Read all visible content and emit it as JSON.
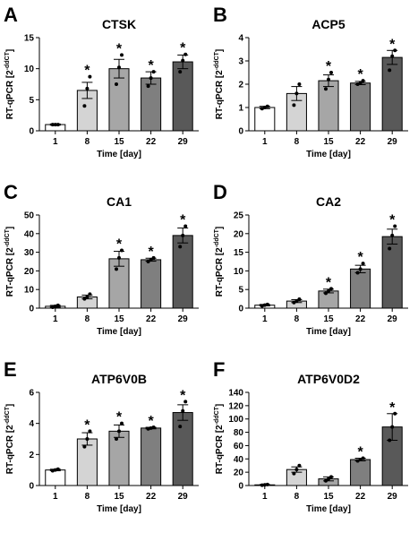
{
  "chart_data": [
    {
      "type": "bar",
      "panel": "A",
      "title": "CTSK",
      "ylabel": [
        "RT-qPCR [2",
        "-ddCT",
        "]"
      ],
      "xlabel": "Time [day]",
      "categories": [
        "1",
        "8",
        "15",
        "22",
        "29"
      ],
      "values": [
        1,
        6.5,
        10,
        8.5,
        11.1
      ],
      "errors": [
        0.1,
        1.3,
        1.5,
        1.0,
        1.1
      ],
      "points": [
        [
          1,
          1,
          1
        ],
        [
          4,
          6.8,
          8.7
        ],
        [
          7.5,
          10.2,
          12.2
        ],
        [
          7.2,
          8.5,
          9.5
        ],
        [
          9.5,
          11.3,
          12.3
        ]
      ],
      "significance": [
        null,
        "*",
        "*",
        "*",
        "*"
      ],
      "colors": [
        "#ffffff",
        "#d4d4d4",
        "#a6a6a6",
        "#7f7f7f",
        "#595959"
      ],
      "ylim": [
        0,
        15
      ],
      "yticks": [
        0,
        5,
        10,
        15
      ]
    },
    {
      "type": "bar",
      "panel": "B",
      "title": "ACP5",
      "ylabel": [
        "RT-qPCR [2",
        "-ddCT",
        "]"
      ],
      "xlabel": "Time [day]",
      "categories": [
        "1",
        "8",
        "15",
        "22",
        "29"
      ],
      "values": [
        1,
        1.6,
        2.15,
        2.05,
        3.15
      ],
      "errors": [
        0.05,
        0.3,
        0.25,
        0.07,
        0.3
      ],
      "points": [
        [
          0.95,
          1,
          1.05
        ],
        [
          1.1,
          1.6,
          2.0
        ],
        [
          1.8,
          2.2,
          2.5
        ],
        [
          2.0,
          2.05,
          2.15
        ],
        [
          2.6,
          3.2,
          3.45
        ]
      ],
      "significance": [
        null,
        null,
        "*",
        "*",
        "*"
      ],
      "colors": [
        "#ffffff",
        "#d4d4d4",
        "#a6a6a6",
        "#7f7f7f",
        "#595959"
      ],
      "ylim": [
        0,
        4
      ],
      "yticks": [
        0,
        1,
        2,
        3,
        4
      ]
    },
    {
      "type": "bar",
      "panel": "C",
      "title": "CA1",
      "ylabel": [
        "RT-qPCR [2",
        "-ddCT",
        "]"
      ],
      "xlabel": "Time [day]",
      "categories": [
        "1",
        "8",
        "15",
        "22",
        "29"
      ],
      "values": [
        1,
        6,
        26.5,
        26,
        39
      ],
      "errors": [
        0.5,
        1,
        4,
        0.8,
        4
      ],
      "points": [
        [
          0.5,
          1,
          1.5
        ],
        [
          5,
          6,
          7.5
        ],
        [
          21,
          27,
          31
        ],
        [
          25,
          26,
          27
        ],
        [
          33,
          39,
          44
        ]
      ],
      "significance": [
        null,
        null,
        "*",
        "*",
        "*"
      ],
      "colors": [
        "#ffffff",
        "#d4d4d4",
        "#a6a6a6",
        "#7f7f7f",
        "#595959"
      ],
      "ylim": [
        0,
        50
      ],
      "yticks": [
        0,
        10,
        20,
        30,
        40,
        50
      ]
    },
    {
      "type": "bar",
      "panel": "D",
      "title": "CA2",
      "ylabel": [
        "RT-qPCR [2",
        "-ddCT",
        "]"
      ],
      "xlabel": "Time [day]",
      "categories": [
        "1",
        "8",
        "15",
        "22",
        "29"
      ],
      "values": [
        0.8,
        1.9,
        4.6,
        10.5,
        19.2
      ],
      "errors": [
        0.2,
        0.4,
        0.5,
        1,
        2
      ],
      "points": [
        [
          0.6,
          0.8,
          1
        ],
        [
          1.5,
          1.9,
          2.4
        ],
        [
          4,
          4.6,
          5.2
        ],
        [
          9.5,
          10.5,
          12
        ],
        [
          16,
          19.5,
          22
        ]
      ],
      "significance": [
        null,
        null,
        "*",
        "*",
        "*"
      ],
      "colors": [
        "#ffffff",
        "#d4d4d4",
        "#a6a6a6",
        "#7f7f7f",
        "#595959"
      ],
      "ylim": [
        0,
        25
      ],
      "yticks": [
        0,
        5,
        10,
        15,
        20,
        25
      ]
    },
    {
      "type": "bar",
      "panel": "E",
      "title": "ATP6V0B",
      "ylabel": [
        "RT-qPCR [2",
        "-ddCT",
        "]"
      ],
      "xlabel": "Time [day]",
      "categories": [
        "1",
        "8",
        "15",
        "22",
        "29"
      ],
      "values": [
        1,
        3,
        3.5,
        3.7,
        4.7
      ],
      "errors": [
        0.05,
        0.4,
        0.4,
        0.05,
        0.5
      ],
      "points": [
        [
          0.95,
          1,
          1.05
        ],
        [
          2.5,
          3,
          3.5
        ],
        [
          3,
          3.5,
          4
        ],
        [
          3.65,
          3.7,
          3.75
        ],
        [
          3.8,
          4.8,
          5.4
        ]
      ],
      "significance": [
        null,
        "*",
        "*",
        "*",
        "*"
      ],
      "colors": [
        "#ffffff",
        "#d4d4d4",
        "#a6a6a6",
        "#7f7f7f",
        "#595959"
      ],
      "ylim": [
        0,
        6
      ],
      "yticks": [
        0,
        2,
        4,
        6
      ]
    },
    {
      "type": "bar",
      "panel": "F",
      "title": "ATP6V0D2",
      "ylabel": [
        "RT-qPCR [2",
        "-ddCT",
        "]"
      ],
      "xlabel": "Time [day]",
      "categories": [
        "1",
        "8",
        "15",
        "22",
        "29"
      ],
      "values": [
        1,
        24,
        10,
        39,
        88
      ],
      "errors": [
        0.5,
        4,
        3,
        2,
        20
      ],
      "points": [
        [
          0.5,
          1,
          1.5
        ],
        [
          18,
          24,
          30
        ],
        [
          7,
          10,
          13
        ],
        [
          37,
          39,
          41
        ],
        [
          68,
          88,
          108
        ]
      ],
      "significance": [
        null,
        null,
        null,
        "*",
        "*"
      ],
      "colors": [
        "#ffffff",
        "#d4d4d4",
        "#a6a6a6",
        "#7f7f7f",
        "#595959"
      ],
      "ylim": [
        0,
        140
      ],
      "yticks": [
        0,
        20,
        40,
        60,
        80,
        100,
        120,
        140
      ]
    }
  ]
}
